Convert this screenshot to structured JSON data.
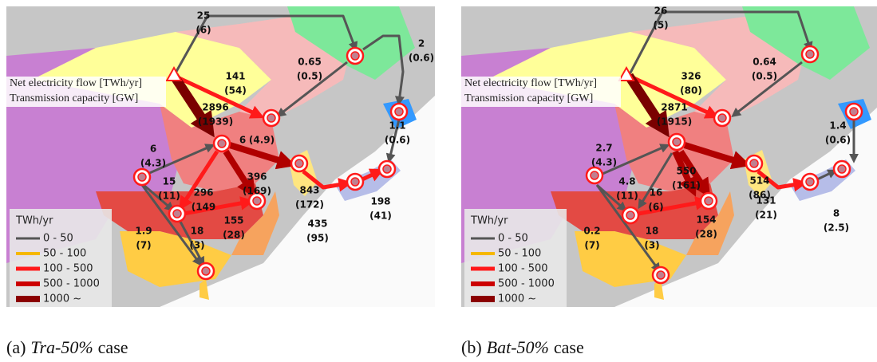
{
  "panels": [
    {
      "caption": {
        "label": "(a)",
        "case_name": "Tra-50%",
        "suffix": "case"
      },
      "note": [
        "Net electricity flow [TWh/yr]",
        "Transmission capacity [GW]"
      ],
      "legend": {
        "title": "TWh/yr",
        "items": [
          "0 - 50",
          "50 - 100",
          "100 - 500",
          "500 - 1000",
          "1000 ~"
        ]
      },
      "flows": [
        {
          "flow": "25",
          "capacity": "(6)"
        },
        {
          "flow": "2",
          "capacity": "(0.6)"
        },
        {
          "flow": "0.65",
          "capacity": "(0.5)"
        },
        {
          "flow": "141",
          "capacity": "(54)"
        },
        {
          "flow": "2896",
          "capacity": "(1939)"
        },
        {
          "flow": "6",
          "capacity": "(4.3)"
        },
        {
          "flow": "6",
          "capacity": "(4.9)"
        },
        {
          "flow": "15",
          "capacity": "(11)"
        },
        {
          "flow": "396",
          "capacity": "(169)"
        },
        {
          "flow": "843",
          "capacity": "(172)"
        },
        {
          "flow": "1.1",
          "capacity": "(0.6)"
        },
        {
          "flow": "296",
          "capacity": "(149"
        },
        {
          "flow": "435",
          "capacity": "(95)"
        },
        {
          "flow": "198",
          "capacity": "(41)"
        },
        {
          "flow": "1.9",
          "capacity": "(7)"
        },
        {
          "flow": "155",
          "capacity": "(28)"
        },
        {
          "flow": "18",
          "capacity": "(3)"
        }
      ]
    },
    {
      "caption": {
        "label": "(b)",
        "case_name": "Bat-50%",
        "suffix": "case"
      },
      "note": [
        "Net electricity flow [TWh/yr]",
        "Transmission capacity [GW]"
      ],
      "legend": {
        "title": "TWh/yr",
        "items": [
          "0 - 50",
          "50 - 100",
          "100 - 500",
          "500 - 1000",
          "1000 ~"
        ]
      },
      "flows": [
        {
          "flow": "26",
          "capacity": "(5)"
        },
        {
          "flow": "0.64",
          "capacity": "(0.5)"
        },
        {
          "flow": "326",
          "capacity": "(80)"
        },
        {
          "flow": "2871",
          "capacity": "(1915)"
        },
        {
          "flow": "1.4",
          "capacity": "(0.6)"
        },
        {
          "flow": "2.7",
          "capacity": "(4.3)"
        },
        {
          "flow": "4.8",
          "capacity": "(11)"
        },
        {
          "flow": "550",
          "capacity": "(161)"
        },
        {
          "flow": "16",
          "capacity": "(6)"
        },
        {
          "flow": "514",
          "capacity": "(86)"
        },
        {
          "flow": "131",
          "capacity": "(21)"
        },
        {
          "flow": "8",
          "capacity": "(2.5)"
        },
        {
          "flow": "0.2",
          "capacity": "(7)"
        },
        {
          "flow": "154",
          "capacity": "(28)"
        },
        {
          "flow": "18",
          "capacity": "(3)"
        }
      ]
    }
  ]
}
